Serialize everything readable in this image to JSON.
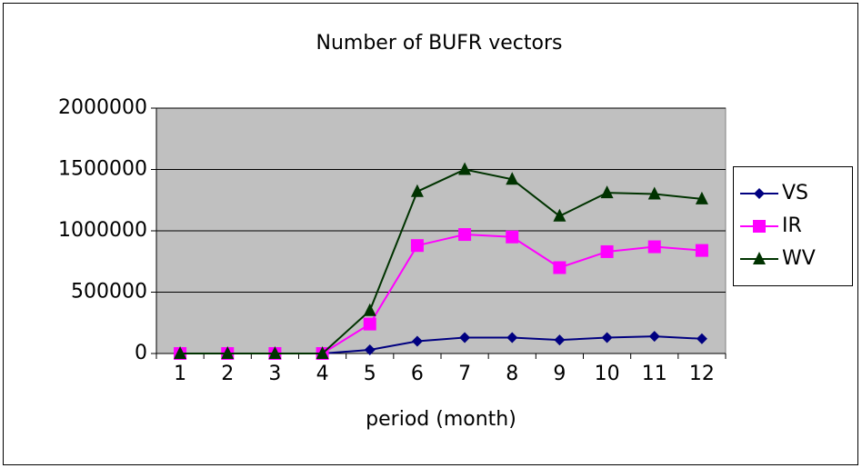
{
  "chart_data": {
    "type": "line",
    "title": "Number of BUFR vectors",
    "x_label": "period (month)",
    "categories": [
      "1",
      "2",
      "3",
      "4",
      "5",
      "6",
      "7",
      "8",
      "9",
      "10",
      "11",
      "12"
    ],
    "series": [
      {
        "name": "VS",
        "color": "#000080",
        "marker": "diamond",
        "values": [
          0,
          0,
          0,
          0,
          30000,
          100000,
          130000,
          130000,
          110000,
          130000,
          140000,
          120000
        ]
      },
      {
        "name": "IR",
        "color": "#ff00ff",
        "marker": "square",
        "values": [
          0,
          0,
          0,
          0,
          240000,
          880000,
          970000,
          950000,
          700000,
          830000,
          870000,
          840000
        ]
      },
      {
        "name": "WV",
        "color": "#003300",
        "marker": "triangle",
        "values": [
          0,
          0,
          0,
          0,
          350000,
          1320000,
          1500000,
          1420000,
          1120000,
          1310000,
          1300000,
          1260000
        ]
      }
    ],
    "ylim": [
      0,
      2000000
    ],
    "yticks": [
      0,
      500000,
      1000000,
      1500000,
      2000000
    ],
    "grid": true,
    "legend": "right"
  }
}
